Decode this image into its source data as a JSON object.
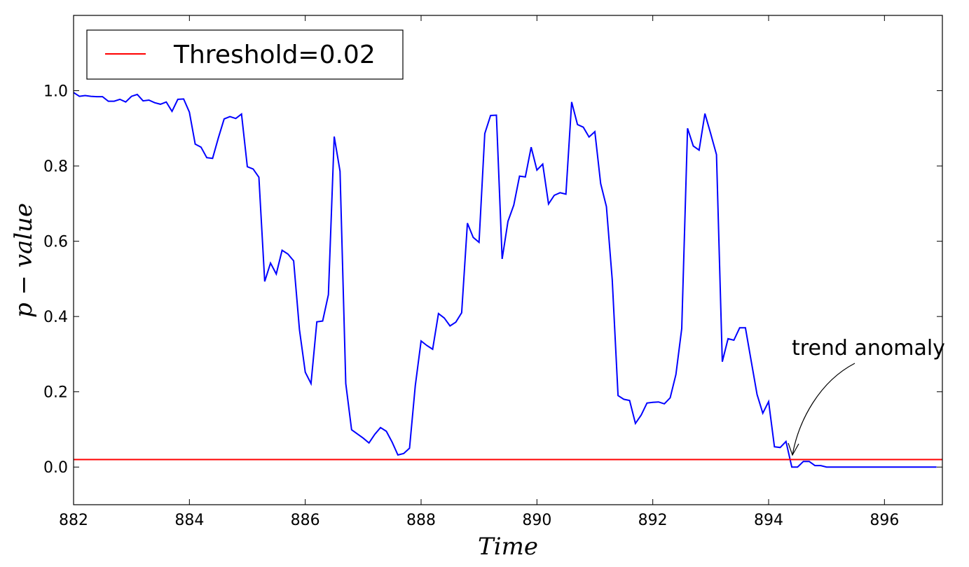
{
  "chart_data": {
    "type": "line",
    "title": "",
    "xlabel": "Time",
    "ylabel": "p − value",
    "xlim": [
      882,
      897
    ],
    "ylim": [
      -0.1,
      1.2
    ],
    "xticks": [
      882,
      884,
      886,
      888,
      890,
      892,
      894,
      896
    ],
    "yticks": [
      0.0,
      0.2,
      0.4,
      0.6,
      0.8,
      1.0
    ],
    "ytick_labels": [
      "0.0",
      "0.2",
      "0.4",
      "0.6",
      "0.8",
      "1.0"
    ],
    "grid": false,
    "legend": {
      "placement": "top-left",
      "entries": [
        "Threshold=0.02"
      ]
    },
    "threshold": {
      "name": "Threshold=0.02",
      "value": 0.02,
      "color": "#ff0000"
    },
    "series": [
      {
        "color": "#0000ff",
        "x": [
          882.0,
          882.1,
          882.2,
          882.3,
          882.4,
          882.5,
          882.6,
          882.7,
          882.8,
          882.9,
          883.0,
          883.1,
          883.2,
          883.3,
          883.4,
          883.5,
          883.6,
          883.7,
          883.8,
          883.9,
          884.0,
          884.1,
          884.2,
          884.3,
          884.4,
          884.5,
          884.6,
          884.7,
          884.8,
          884.9,
          885.0,
          885.1,
          885.2,
          885.3,
          885.4,
          885.5,
          885.6,
          885.7,
          885.8,
          885.9,
          886.0,
          886.1,
          886.2,
          886.3,
          886.4,
          886.5,
          886.6,
          886.7,
          886.8,
          886.9,
          887.0,
          887.1,
          887.2,
          887.3,
          887.4,
          887.5,
          887.6,
          887.7,
          887.8,
          887.9,
          888.0,
          888.1,
          888.2,
          888.3,
          888.4,
          888.5,
          888.6,
          888.7,
          888.8,
          888.9,
          889.0,
          889.1,
          889.2,
          889.3,
          889.4,
          889.5,
          889.6,
          889.7,
          889.8,
          889.9,
          890.0,
          890.1,
          890.2,
          890.3,
          890.4,
          890.5,
          890.6,
          890.7,
          890.8,
          890.9,
          891.0,
          891.1,
          891.2,
          891.3,
          891.4,
          891.5,
          891.6,
          891.7,
          891.8,
          891.9,
          892.0,
          892.1,
          892.2,
          892.3,
          892.4,
          892.5,
          892.6,
          892.7,
          892.8,
          892.9,
          893.0,
          893.1,
          893.2,
          893.3,
          893.4,
          893.5,
          893.6,
          893.7,
          893.8,
          893.9,
          894.0,
          894.1,
          894.2,
          894.3,
          894.4,
          894.5,
          894.6,
          894.7,
          894.8,
          894.9,
          895.0,
          895.5,
          896.0,
          896.5,
          896.9
        ],
        "y": [
          0.995,
          0.985,
          0.987,
          0.985,
          0.984,
          0.984,
          0.972,
          0.972,
          0.977,
          0.97,
          0.985,
          0.99,
          0.973,
          0.975,
          0.968,
          0.964,
          0.97,
          0.945,
          0.977,
          0.978,
          0.943,
          0.858,
          0.85,
          0.822,
          0.82,
          0.875,
          0.925,
          0.931,
          0.926,
          0.938,
          0.798,
          0.792,
          0.77,
          0.493,
          0.542,
          0.513,
          0.576,
          0.566,
          0.548,
          0.365,
          0.252,
          0.222,
          0.386,
          0.388,
          0.458,
          0.878,
          0.786,
          0.222,
          0.099,
          0.088,
          0.077,
          0.064,
          0.087,
          0.105,
          0.095,
          0.066,
          0.032,
          0.036,
          0.05,
          0.216,
          0.335,
          0.323,
          0.313,
          0.408,
          0.396,
          0.375,
          0.385,
          0.41,
          0.648,
          0.61,
          0.597,
          0.886,
          0.934,
          0.935,
          0.553,
          0.653,
          0.696,
          0.773,
          0.771,
          0.85,
          0.789,
          0.805,
          0.699,
          0.722,
          0.729,
          0.725,
          0.97,
          0.91,
          0.903,
          0.877,
          0.891,
          0.753,
          0.692,
          0.498,
          0.19,
          0.18,
          0.177,
          0.116,
          0.138,
          0.17,
          0.172,
          0.173,
          0.168,
          0.184,
          0.246,
          0.368,
          0.9,
          0.853,
          0.842,
          0.939,
          0.886,
          0.83,
          0.28,
          0.341,
          0.337,
          0.37,
          0.37,
          0.281,
          0.193,
          0.143,
          0.174,
          0.054,
          0.052,
          0.068,
          0.0,
          0.0,
          0.015,
          0.015,
          0.004,
          0.004,
          0.0,
          0.0,
          0.0,
          0.0,
          0.0
        ]
      }
    ],
    "annotations": [
      {
        "text": "trend anomaly",
        "x": 894.35,
        "y": 0.02
      }
    ]
  }
}
